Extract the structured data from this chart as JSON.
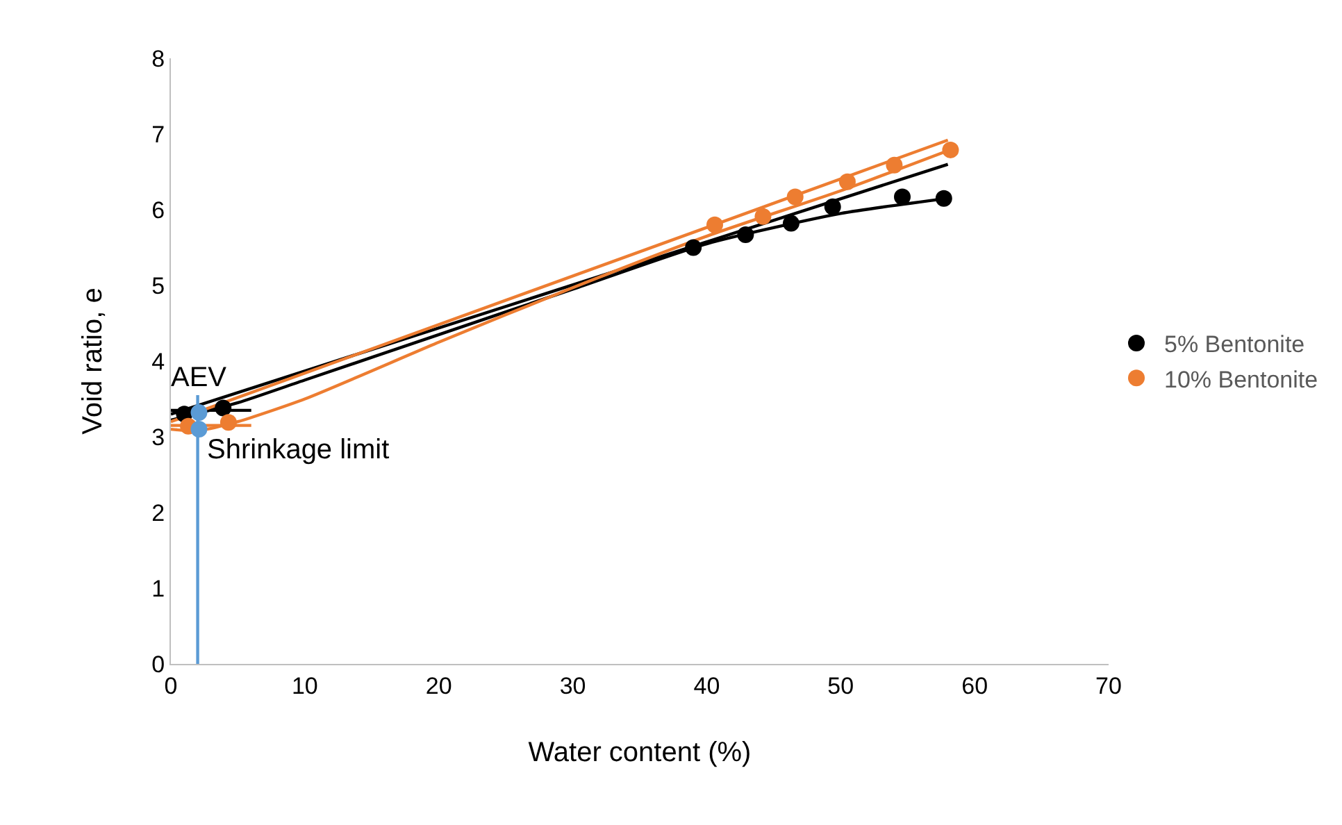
{
  "chart_data": {
    "type": "scatter",
    "xlabel": "Water content (%)",
    "ylabel": "Void ratio, e",
    "xlim": [
      0,
      70
    ],
    "ylim": [
      0,
      8
    ],
    "xticks": [
      0,
      10,
      20,
      30,
      40,
      50,
      60,
      70
    ],
    "yticks": [
      0,
      1,
      2,
      3,
      4,
      5,
      6,
      7,
      8
    ],
    "grid": false,
    "legend": "right",
    "series": [
      {
        "type": "line",
        "marker": "none",
        "color": "#000000",
        "x": [
          0,
          5,
          10,
          20,
          30,
          40,
          50,
          58
        ],
        "values": [
          3.22,
          3.45,
          3.75,
          4.35,
          4.95,
          5.55,
          5.95,
          6.15
        ]
      },
      {
        "type": "line",
        "marker": "none",
        "color": "#000000",
        "x": [
          0,
          58
        ],
        "values": [
          3.3,
          6.6
        ]
      },
      {
        "type": "line",
        "marker": "none",
        "color": "#000000",
        "x": [
          0,
          6
        ],
        "values": [
          3.35,
          3.35
        ]
      },
      {
        "type": "line",
        "marker": "none",
        "color": "#ed7d31",
        "x": [
          0,
          2,
          5,
          10,
          20,
          30,
          40,
          50,
          58
        ],
        "values": [
          3.1,
          3.08,
          3.2,
          3.5,
          4.25,
          4.97,
          5.65,
          6.25,
          6.78
        ]
      },
      {
        "type": "line",
        "marker": "none",
        "color": "#ed7d31",
        "x": [
          0,
          58
        ],
        "values": [
          3.2,
          6.92
        ]
      },
      {
        "type": "line",
        "marker": "none",
        "color": "#ed7d31",
        "x": [
          0,
          6
        ],
        "values": [
          3.15,
          3.15
        ]
      },
      {
        "type": "line",
        "marker": "none",
        "color": "#5b9bd5",
        "x": [
          2,
          2
        ],
        "values": [
          0,
          3.55
        ]
      },
      {
        "marker": "circle",
        "name": "5% Bentonite",
        "color": "#000000",
        "x": [
          1.0,
          3.9,
          39.0,
          42.9,
          46.3,
          49.4,
          54.6,
          57.7
        ],
        "values": [
          3.3,
          3.38,
          5.5,
          5.67,
          5.82,
          6.04,
          6.17,
          6.15
        ]
      },
      {
        "marker": "circle",
        "name": "10% Bentonite",
        "color": "#ed7d31",
        "x": [
          1.3,
          4.3,
          40.6,
          44.2,
          46.6,
          50.5,
          54.0,
          58.2
        ],
        "values": [
          3.14,
          3.19,
          5.8,
          5.91,
          6.17,
          6.37,
          6.59,
          6.79
        ]
      },
      {
        "marker": "circle",
        "color": "#5b9bd5",
        "x": [
          2.1,
          2.1
        ],
        "values": [
          3.32,
          3.1
        ]
      }
    ],
    "annotations": [
      {
        "text": "AEV",
        "x": 2.1,
        "y": 3.32
      },
      {
        "text": "Shrinkage limit",
        "x": 2.1,
        "y": 3.1
      }
    ]
  }
}
